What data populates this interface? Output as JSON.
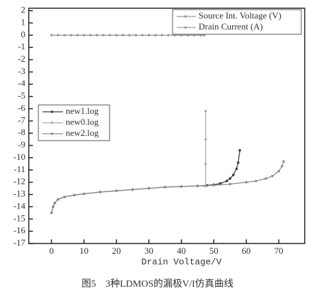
{
  "chart_data": {
    "type": "line",
    "caption": "图5　3种LDMOS的漏极V/I仿真曲线",
    "x_label": "Drain Voltage/V",
    "xlim": [
      -7,
      78
    ],
    "xticks": [
      0,
      10,
      20,
      30,
      40,
      50,
      60,
      70
    ],
    "ylim": [
      -17,
      2.2
    ],
    "yticks": [
      2,
      1,
      0,
      -1,
      -2,
      -3,
      -4,
      -5,
      -6,
      -7,
      -8,
      -9,
      -10,
      -11,
      -12,
      -13,
      -14,
      -15,
      -16,
      -17
    ],
    "grid": false,
    "series": [
      {
        "name": "Source Int. Voltage (V)",
        "legend": "top-right",
        "color": "#9a9a9a",
        "x": [
          0,
          2,
          4,
          6,
          8,
          10,
          12,
          14,
          16,
          18,
          20,
          22,
          24,
          26,
          28,
          30,
          32,
          34,
          36,
          38,
          40,
          42,
          44,
          46,
          47
        ],
        "values": [
          0,
          0,
          0,
          0,
          0,
          0,
          0,
          0,
          0,
          0,
          0,
          0,
          0,
          0,
          0,
          0,
          0,
          0,
          0,
          0,
          0,
          0,
          0,
          0,
          0
        ]
      },
      {
        "name": "Drain Current (A)",
        "legend": "top-right",
        "color": "#9a9a9a",
        "x": [],
        "values": []
      },
      {
        "name": "new1.log",
        "legend": "middle-left",
        "color": "#3a3a3a",
        "x": [
          0,
          0.5,
          1,
          2,
          4,
          7,
          10,
          15,
          20,
          25,
          30,
          35,
          40,
          45,
          48,
          50,
          52,
          54,
          55,
          56,
          57,
          57.5,
          58
        ],
        "values": [
          -14.5,
          -14,
          -13.7,
          -13.4,
          -13.2,
          -13.05,
          -12.95,
          -12.8,
          -12.7,
          -12.6,
          -12.5,
          -12.4,
          -12.35,
          -12.3,
          -12.25,
          -12.2,
          -12.1,
          -11.9,
          -11.7,
          -11.4,
          -10.9,
          -10.4,
          -9.4
        ]
      },
      {
        "name": "new0.log",
        "legend": "middle-left",
        "color": "#a8a8a8",
        "x": [
          0,
          0.5,
          1,
          2,
          4,
          7,
          10,
          15,
          20,
          25,
          30,
          35,
          40,
          45,
          47,
          47.5,
          47.5,
          47.5,
          47.5
        ],
        "values": [
          -14.5,
          -14,
          -13.7,
          -13.4,
          -13.2,
          -13.05,
          -12.95,
          -12.8,
          -12.7,
          -12.6,
          -12.5,
          -12.4,
          -12.35,
          -12.3,
          -12.3,
          -12.3,
          -10.5,
          -8.5,
          -6.2
        ]
      },
      {
        "name": "new2.log",
        "legend": "middle-left",
        "color": "#8c8c8c",
        "x": [
          0,
          0.5,
          1,
          2,
          4,
          7,
          10,
          15,
          20,
          25,
          30,
          35,
          40,
          45,
          50,
          55,
          60,
          63,
          66,
          68,
          70,
          71,
          71.5
        ],
        "values": [
          -14.5,
          -14,
          -13.7,
          -13.4,
          -13.2,
          -13.05,
          -12.95,
          -12.8,
          -12.7,
          -12.6,
          -12.5,
          -12.4,
          -12.35,
          -12.3,
          -12.25,
          -12.15,
          -12,
          -11.9,
          -11.7,
          -11.5,
          -11.1,
          -10.7,
          -10.3
        ]
      }
    ]
  }
}
